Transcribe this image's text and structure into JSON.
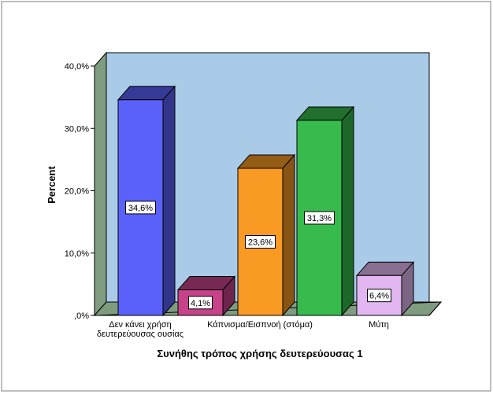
{
  "chart_data": {
    "type": "bar",
    "title": "",
    "xlabel": "Συνήθης τρόπος χρήσης δευτερεύουσας 1",
    "ylabel": "Percent",
    "ylim": [
      0,
      40
    ],
    "yticks": [
      0,
      10,
      20,
      30,
      40
    ],
    "ytick_labels": [
      ",0%",
      "10,0%",
      "20,0%",
      "30,0%",
      "40,0%"
    ],
    "grid": false,
    "legend": "none",
    "three_d": true,
    "x_tick_labels": [
      {
        "lines": [
          "Δεν κάνει χρήση",
          "δευτερεύουσας ουσίας"
        ]
      },
      {
        "lines": [
          "Κάπνισμα/Εισπνοή (στόμα)"
        ]
      },
      {
        "lines": [
          "Μύτη"
        ]
      }
    ],
    "bars": [
      {
        "value": 34.6,
        "label": "34,6%",
        "color": "#5a61fb"
      },
      {
        "value": 4.1,
        "label": "4,1%",
        "color": "#c6438a"
      },
      {
        "value": 23.6,
        "label": "23,6%",
        "color": "#f99a24"
      },
      {
        "value": 31.3,
        "label": "31,3%",
        "color": "#37bb4c"
      },
      {
        "value": 6.4,
        "label": "6,4%",
        "color": "#e2b7f1"
      }
    ],
    "colors": {
      "wall": "#a9cbe7",
      "side_wall": "#7f9c80",
      "floor": "#7f9c80",
      "outline": "#000000",
      "background": "#ffffff",
      "frame_border": "#7f7f7f"
    }
  }
}
